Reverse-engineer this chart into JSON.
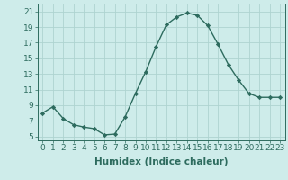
{
  "x": [
    0,
    1,
    2,
    3,
    4,
    5,
    6,
    7,
    8,
    9,
    10,
    11,
    12,
    13,
    14,
    15,
    16,
    17,
    18,
    19,
    20,
    21,
    22,
    23
  ],
  "y": [
    8.0,
    8.8,
    7.3,
    6.5,
    6.2,
    6.0,
    5.2,
    5.3,
    7.5,
    10.5,
    13.3,
    16.5,
    19.3,
    20.3,
    20.8,
    20.5,
    19.2,
    16.8,
    14.2,
    12.2,
    10.5,
    10.0,
    10.0,
    10.0
  ],
  "xlabel": "Humidex (Indice chaleur)",
  "yticks": [
    5,
    7,
    9,
    11,
    13,
    15,
    17,
    19,
    21
  ],
  "xticks": [
    0,
    1,
    2,
    3,
    4,
    5,
    6,
    7,
    8,
    9,
    10,
    11,
    12,
    13,
    14,
    15,
    16,
    17,
    18,
    19,
    20,
    21,
    22,
    23
  ],
  "ylim": [
    4.5,
    22.0
  ],
  "xlim": [
    -0.5,
    23.5
  ],
  "line_color": "#2d6b5e",
  "marker": "D",
  "marker_size": 2.2,
  "bg_color": "#ceecea",
  "grid_color": "#aed4d0",
  "axis_color": "#2d6b5e",
  "label_color": "#2d6b5e",
  "tick_color": "#2d6b5e",
  "xlabel_fontsize": 7.5,
  "tick_fontsize": 6.5,
  "linewidth": 1.0
}
